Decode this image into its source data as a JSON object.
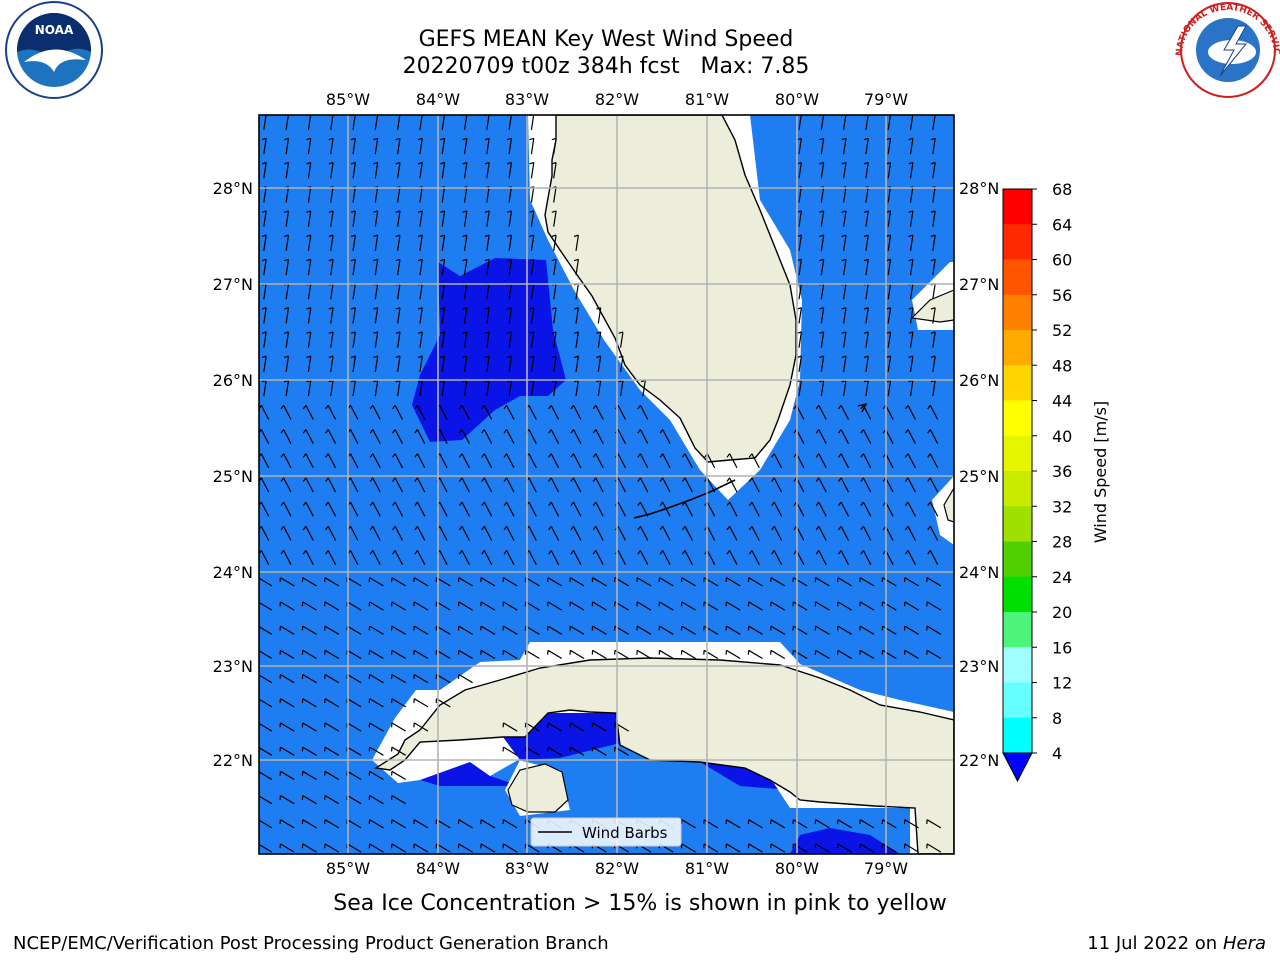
{
  "title": {
    "line1": "GEFS MEAN Key West Wind Speed",
    "line2": "20220709 t00z 384h fcst   Max: 7.85"
  },
  "caption": "Sea Ice Concentration > 15% is shown in pink to yellow",
  "footer": {
    "left": "NCEP/EMC/Verification Post Processing Product Generation Branch",
    "date": "11 Jul 2022 on ",
    "machine": "Hera"
  },
  "logos": {
    "noaa_text": "NOAA",
    "nws_text": "NATIONAL WEATHER SERVICE"
  },
  "legend_label": "Wind Barbs",
  "lon_labels": [
    "85°W",
    "84°W",
    "83°W",
    "82°W",
    "81°W",
    "80°W",
    "79°W"
  ],
  "lat_labels": [
    "28°N",
    "27°N",
    "26°N",
    "25°N",
    "24°N",
    "23°N",
    "22°N"
  ],
  "colorbar": {
    "label": "Wind Speed [m/s]",
    "ticks": [
      "68",
      "64",
      "60",
      "56",
      "52",
      "48",
      "44",
      "40",
      "36",
      "32",
      "28",
      "24",
      "20",
      "16",
      "12",
      "8",
      "4"
    ],
    "colors": [
      "#ff0000",
      "#ff2a00",
      "#ff5500",
      "#ff8000",
      "#ffaa00",
      "#ffd500",
      "#ffff00",
      "#e5f500",
      "#c8eb00",
      "#a0e000",
      "#50d000",
      "#00e000",
      "#4cf57a",
      "#a0ffff",
      "#66ffff",
      "#00ffff",
      "#00c8ff",
      "#0080ff",
      "#0000ff"
    ]
  },
  "colors": {
    "ocean": "#1e7df0",
    "ocean_low": "#0a14e6",
    "land": "#ededdc",
    "grid": "#b4b4b4"
  }
}
